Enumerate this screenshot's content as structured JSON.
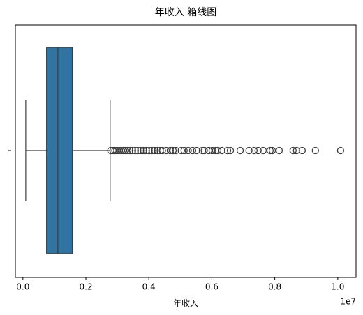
{
  "chart_data": {
    "type": "box",
    "title": "年收入 箱线图",
    "x_label": "年收入",
    "x_offset_label": "1e7",
    "orientation": "horizontal",
    "color": "#3274a1",
    "flier_color": "#3d3d3d",
    "xlim": [
      -0.024,
      1.058
    ],
    "xticks": [
      {
        "value": 0,
        "label": "0.0"
      },
      {
        "value": 0.2,
        "label": "0.2"
      },
      {
        "value": 0.4,
        "label": "0.4"
      },
      {
        "value": 0.6,
        "label": "0.6"
      },
      {
        "value": 0.8,
        "label": "0.8"
      },
      {
        "value": 1.0,
        "label": "1.0"
      }
    ],
    "whislo": 0.009,
    "q1": 0.075,
    "med": 0.111,
    "q3": 0.157,
    "whishi": 0.277,
    "fliers": [
      0.279,
      0.286,
      0.292,
      0.299,
      0.306,
      0.312,
      0.319,
      0.326,
      0.333,
      0.34,
      0.348,
      0.357,
      0.365,
      0.374,
      0.383,
      0.392,
      0.401,
      0.41,
      0.419,
      0.428,
      0.436,
      0.443,
      0.455,
      0.468,
      0.477,
      0.486,
      0.503,
      0.512,
      0.525,
      0.539,
      0.552,
      0.57,
      0.576,
      0.59,
      0.601,
      0.612,
      0.619,
      0.632,
      0.65,
      0.659,
      0.69,
      0.718,
      0.734,
      0.747,
      0.763,
      0.785,
      0.792,
      0.814,
      0.858,
      0.869,
      0.887,
      0.929,
      1.009
    ]
  }
}
